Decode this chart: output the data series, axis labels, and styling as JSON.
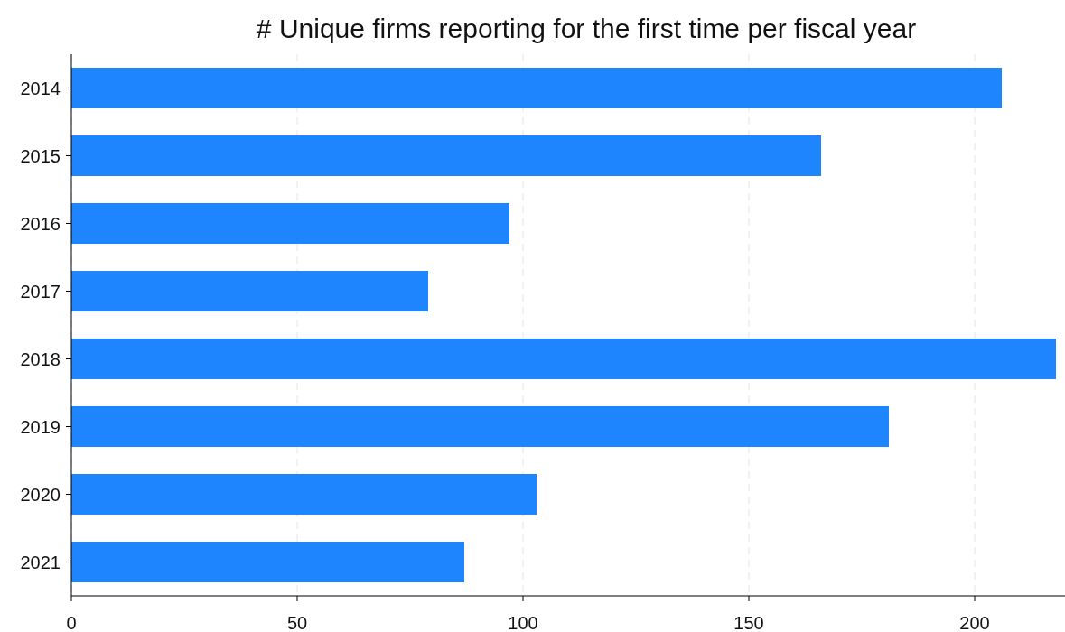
{
  "chart_data": {
    "type": "bar",
    "orientation": "horizontal",
    "title": "# Unique firms reporting for the first time per fiscal year",
    "categories": [
      "2014",
      "2015",
      "2016",
      "2017",
      "2018",
      "2019",
      "2020",
      "2021"
    ],
    "values": [
      206,
      166,
      97,
      79,
      218,
      181,
      103,
      87
    ],
    "color": "#1f85ff",
    "xlim": [
      0,
      220
    ],
    "xticks": [
      0,
      50,
      100,
      150,
      200
    ],
    "grid": "x"
  }
}
